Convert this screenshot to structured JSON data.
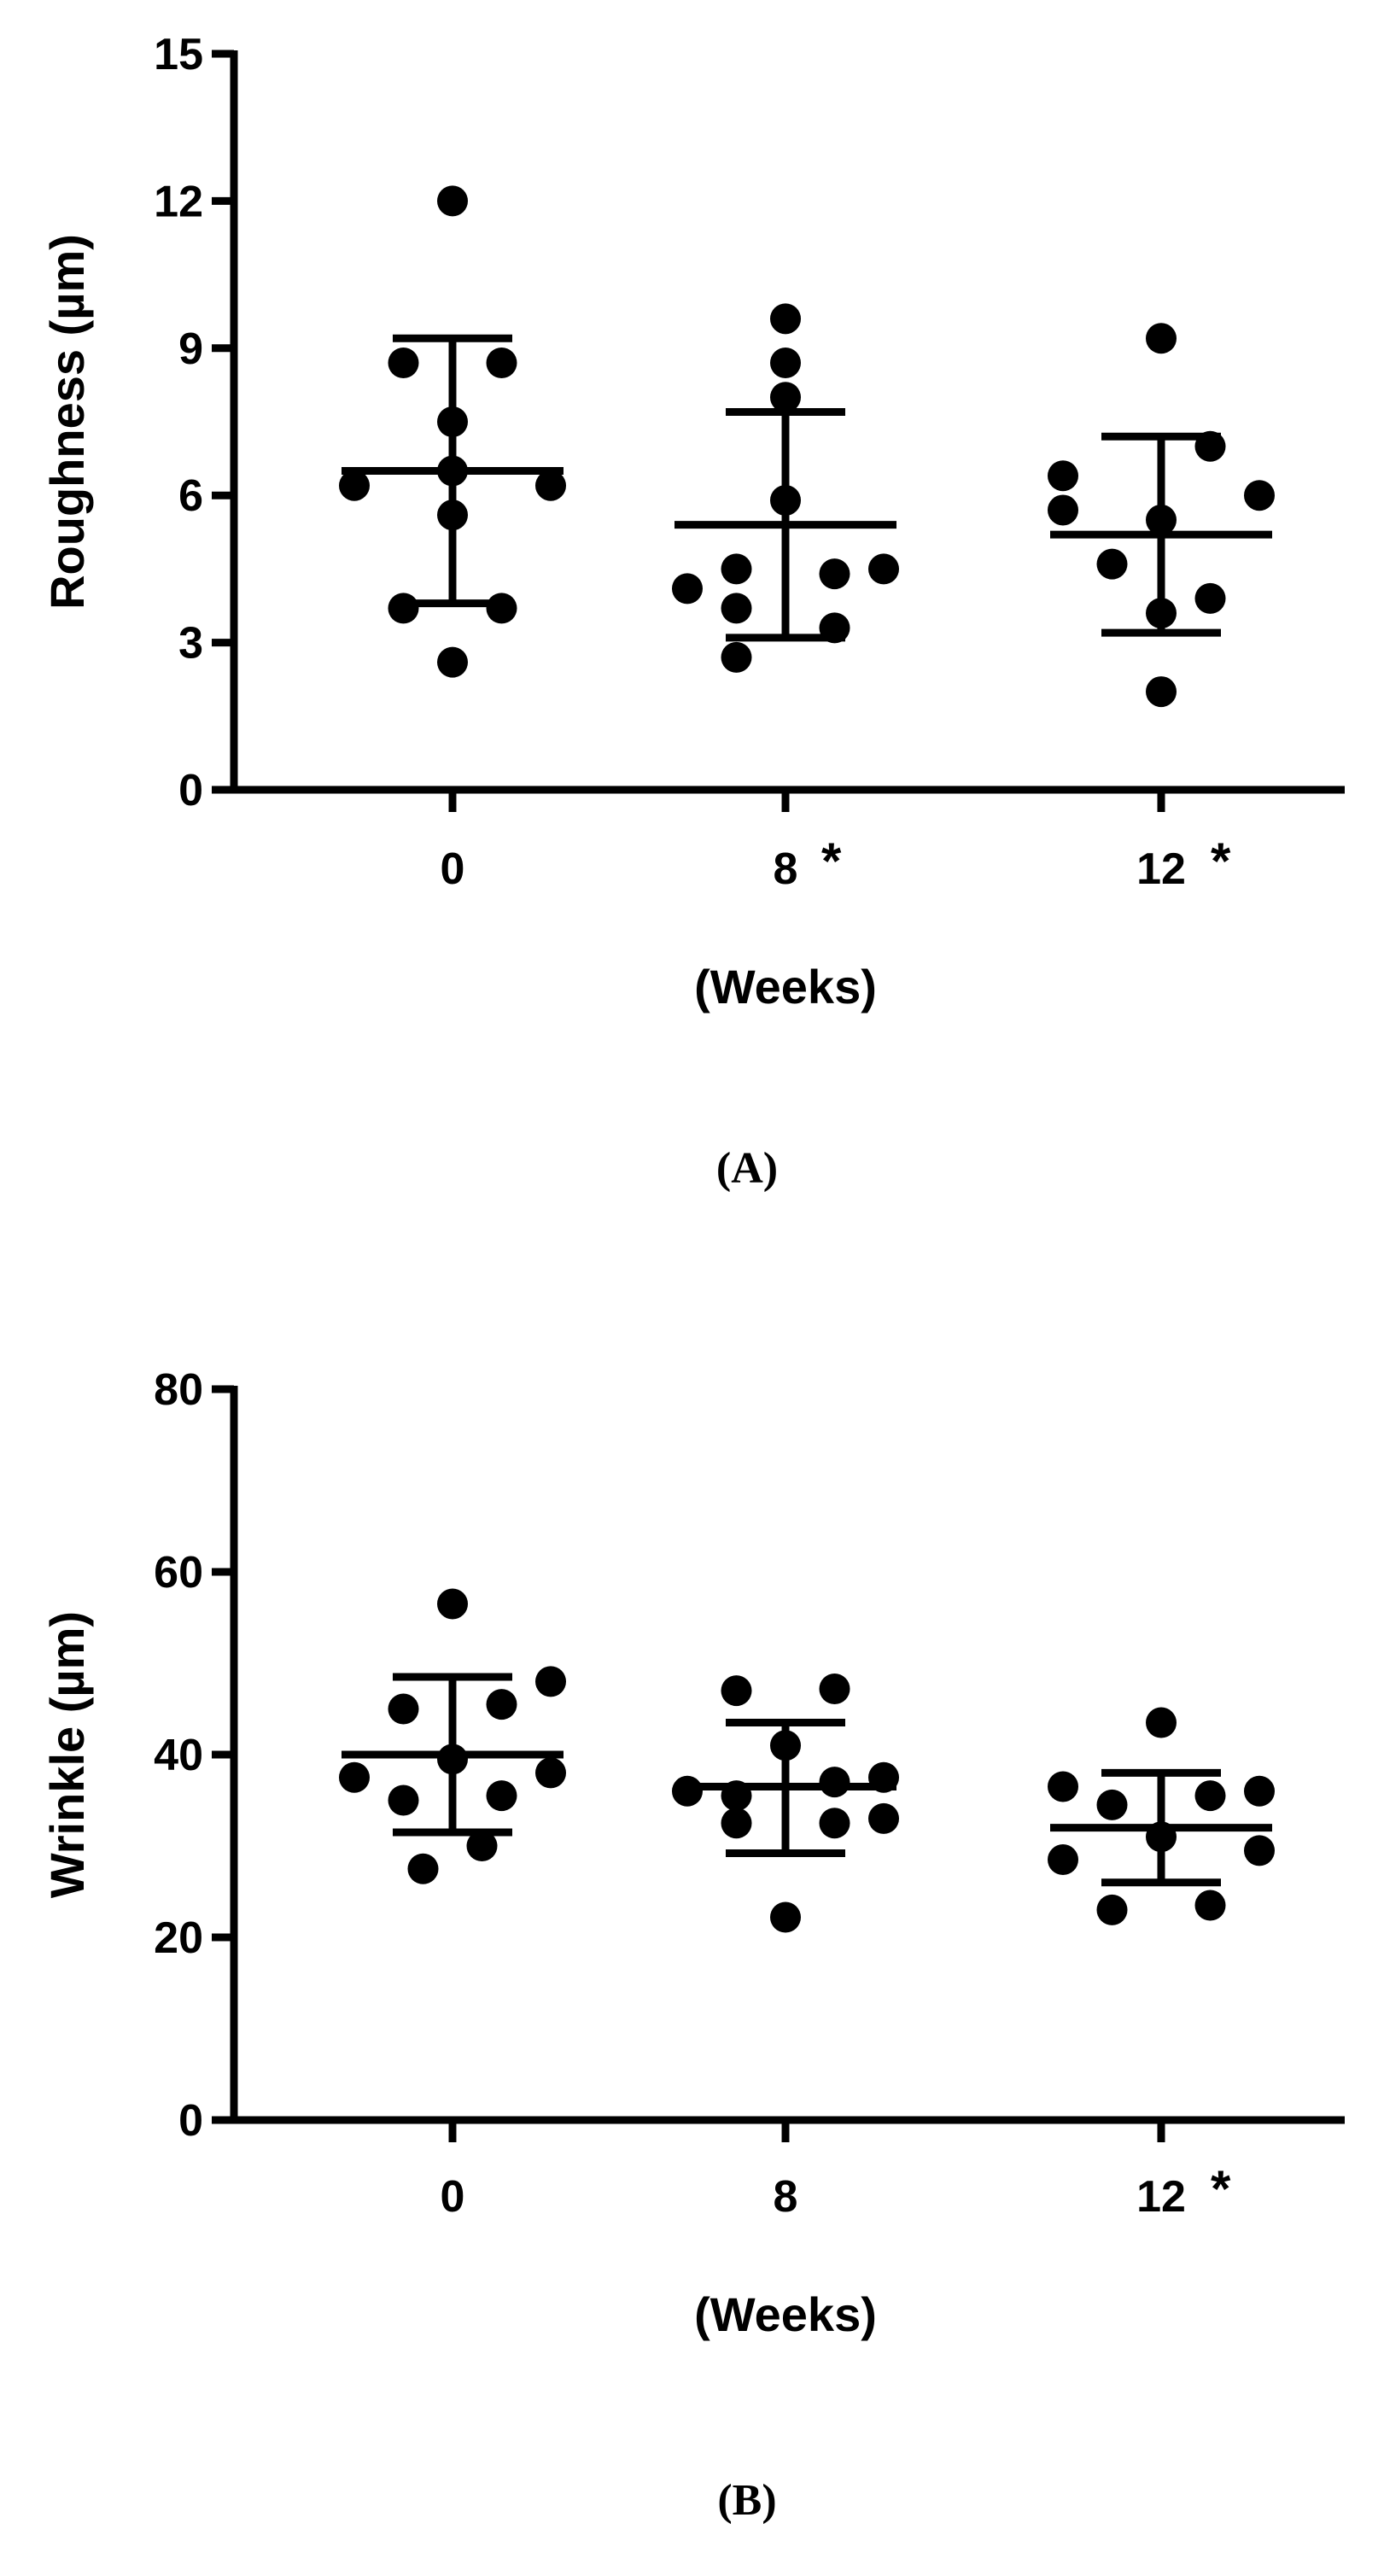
{
  "chart_data": [
    {
      "type": "scatter",
      "panel_label": "(A)",
      "ylabel": "Roughness (µm)",
      "xlabel": "(Weeks)",
      "ylim": [
        0,
        15
      ],
      "yticks": [
        0,
        3,
        6,
        9,
        12,
        15
      ],
      "categories": [
        "0",
        "8",
        "12"
      ],
      "significance": [
        "",
        "*",
        "*"
      ],
      "groups": [
        {
          "name": "0",
          "mean": 6.5,
          "sd_low": 3.8,
          "sd_high": 9.2,
          "points": [
            {
              "jitter": 0,
              "y": 12.0
            },
            {
              "jitter": -0.5,
              "y": 8.7
            },
            {
              "jitter": 0.5,
              "y": 8.7
            },
            {
              "jitter": 0,
              "y": 7.5
            },
            {
              "jitter": 0,
              "y": 6.5
            },
            {
              "jitter": -1,
              "y": 6.2
            },
            {
              "jitter": 1,
              "y": 6.2
            },
            {
              "jitter": 0,
              "y": 5.6
            },
            {
              "jitter": -0.5,
              "y": 3.7
            },
            {
              "jitter": 0.5,
              "y": 3.7
            },
            {
              "jitter": 0,
              "y": 2.6
            }
          ]
        },
        {
          "name": "8",
          "mean": 5.4,
          "sd_low": 3.1,
          "sd_high": 7.7,
          "points": [
            {
              "jitter": 0,
              "y": 9.6
            },
            {
              "jitter": 0,
              "y": 8.7
            },
            {
              "jitter": 0,
              "y": 8.0
            },
            {
              "jitter": 0,
              "y": 5.9
            },
            {
              "jitter": -1,
              "y": 4.1
            },
            {
              "jitter": -0.5,
              "y": 4.5
            },
            {
              "jitter": 0.5,
              "y": 4.4
            },
            {
              "jitter": 1,
              "y": 4.5
            },
            {
              "jitter": -0.5,
              "y": 3.7
            },
            {
              "jitter": 0.5,
              "y": 3.3
            },
            {
              "jitter": -0.5,
              "y": 2.7
            }
          ]
        },
        {
          "name": "12",
          "mean": 5.2,
          "sd_low": 3.2,
          "sd_high": 7.2,
          "points": [
            {
              "jitter": 0,
              "y": 9.2
            },
            {
              "jitter": 0.5,
              "y": 7.0
            },
            {
              "jitter": 1,
              "y": 6.0
            },
            {
              "jitter": -1,
              "y": 6.4
            },
            {
              "jitter": -1,
              "y": 5.7
            },
            {
              "jitter": 0,
              "y": 5.5
            },
            {
              "jitter": -0.5,
              "y": 4.6
            },
            {
              "jitter": 0.5,
              "y": 3.9
            },
            {
              "jitter": 0,
              "y": 3.6
            },
            {
              "jitter": 0,
              "y": 2.0
            }
          ]
        }
      ]
    },
    {
      "type": "scatter",
      "panel_label": "(B)",
      "ylabel": "Wrinkle (µm)",
      "xlabel": "(Weeks)",
      "ylim": [
        0,
        80
      ],
      "yticks": [
        0,
        20,
        40,
        60,
        80
      ],
      "categories": [
        "0",
        "8",
        "12"
      ],
      "significance": [
        "",
        "",
        "*"
      ],
      "groups": [
        {
          "name": "0",
          "mean": 40,
          "sd_low": 31.5,
          "sd_high": 48.5,
          "points": [
            {
              "jitter": 0,
              "y": 56.5
            },
            {
              "jitter": 1,
              "y": 48
            },
            {
              "jitter": -0.5,
              "y": 45
            },
            {
              "jitter": 0.5,
              "y": 45.5
            },
            {
              "jitter": -1,
              "y": 37.5
            },
            {
              "jitter": 1,
              "y": 38
            },
            {
              "jitter": 0,
              "y": 39.5
            },
            {
              "jitter": -0.5,
              "y": 35
            },
            {
              "jitter": 0.5,
              "y": 35.5
            },
            {
              "jitter": 0.3,
              "y": 30
            },
            {
              "jitter": -0.3,
              "y": 27.5
            }
          ]
        },
        {
          "name": "8",
          "mean": 36.5,
          "sd_low": 29.2,
          "sd_high": 43.5,
          "points": [
            {
              "jitter": -0.5,
              "y": 47
            },
            {
              "jitter": 0.5,
              "y": 47.2
            },
            {
              "jitter": 0,
              "y": 41
            },
            {
              "jitter": -1,
              "y": 36
            },
            {
              "jitter": -0.5,
              "y": 35.5
            },
            {
              "jitter": 0.5,
              "y": 37
            },
            {
              "jitter": 1,
              "y": 37.5
            },
            {
              "jitter": 1,
              "y": 33
            },
            {
              "jitter": -0.5,
              "y": 32.5
            },
            {
              "jitter": 0.5,
              "y": 32.5
            },
            {
              "jitter": 0,
              "y": 22.2
            }
          ]
        },
        {
          "name": "12",
          "mean": 32,
          "sd_low": 26,
          "sd_high": 38,
          "points": [
            {
              "jitter": 0,
              "y": 43.5
            },
            {
              "jitter": -1,
              "y": 36.5
            },
            {
              "jitter": 1,
              "y": 36
            },
            {
              "jitter": 0.5,
              "y": 35.5
            },
            {
              "jitter": -0.5,
              "y": 34.5
            },
            {
              "jitter": -1,
              "y": 28.5
            },
            {
              "jitter": 1,
              "y": 29.5
            },
            {
              "jitter": 0,
              "y": 31
            },
            {
              "jitter": -0.5,
              "y": 23
            },
            {
              "jitter": 0.5,
              "y": 23.5
            }
          ]
        }
      ]
    }
  ]
}
